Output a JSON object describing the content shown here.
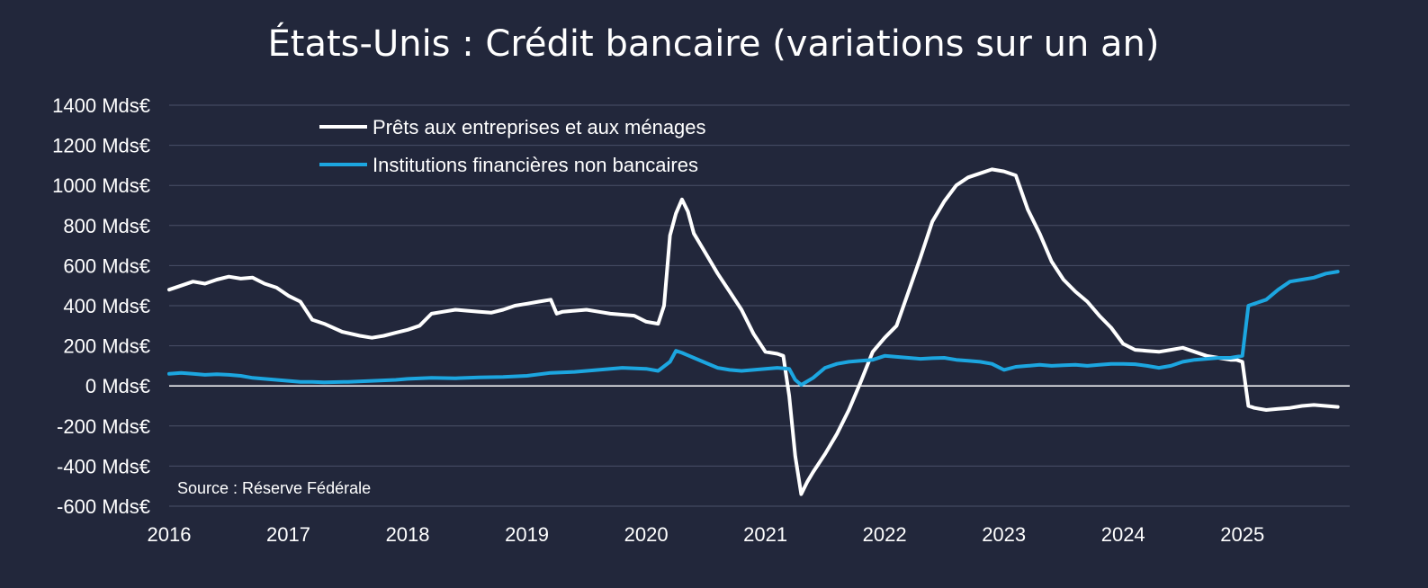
{
  "chart_data": {
    "type": "line",
    "title": "États-Unis : Crédit bancaire (variations sur un an)",
    "source": "Source : Réserve Fédérale",
    "ylim": [
      -600,
      1400
    ],
    "xlim": [
      2016,
      2025.9
    ],
    "yticks": [
      -600,
      -400,
      -200,
      0,
      200,
      400,
      600,
      800,
      1000,
      1200,
      1400
    ],
    "ytick_labels": [
      "-600 Mds€",
      "-400 Mds€",
      "-200 Mds€",
      "0 Mds€",
      "200 Mds€",
      "400 Mds€",
      "600 Mds€",
      "800 Mds€",
      "1000 Mds€",
      "1200 Mds€",
      "1400 Mds€"
    ],
    "xticks": [
      2016,
      2017,
      2018,
      2019,
      2020,
      2021,
      2022,
      2023,
      2024,
      2025
    ],
    "xtick_labels": [
      "2016",
      "2017",
      "2018",
      "2019",
      "2020",
      "2021",
      "2022",
      "2023",
      "2024",
      "2025"
    ],
    "grid": true,
    "legend_position": "top-left",
    "series": [
      {
        "name": "Prêts aux entreprises et aux ménages",
        "color": "#ffffff",
        "x": [
          2016.0,
          2016.1,
          2016.2,
          2016.3,
          2016.4,
          2016.5,
          2016.6,
          2016.7,
          2016.8,
          2016.9,
          2017.0,
          2017.1,
          2017.2,
          2017.3,
          2017.45,
          2017.6,
          2017.7,
          2017.8,
          2017.9,
          2018.0,
          2018.1,
          2018.2,
          2018.3,
          2018.4,
          2018.5,
          2018.6,
          2018.7,
          2018.8,
          2018.9,
          2019.0,
          2019.1,
          2019.2,
          2019.25,
          2019.3,
          2019.4,
          2019.5,
          2019.6,
          2019.7,
          2019.8,
          2019.9,
          2020.0,
          2020.1,
          2020.15,
          2020.2,
          2020.25,
          2020.3,
          2020.35,
          2020.4,
          2020.5,
          2020.6,
          2020.7,
          2020.8,
          2020.9,
          2021.0,
          2021.1,
          2021.15,
          2021.2,
          2021.25,
          2021.3,
          2021.35,
          2021.4,
          2021.5,
          2021.6,
          2021.7,
          2021.8,
          2021.9,
          2022.0,
          2022.1,
          2022.2,
          2022.3,
          2022.4,
          2022.5,
          2022.6,
          2022.7,
          2022.8,
          2022.9,
          2023.0,
          2023.1,
          2023.2,
          2023.3,
          2023.4,
          2023.5,
          2023.6,
          2023.7,
          2023.8,
          2023.9,
          2024.0,
          2024.1,
          2024.2,
          2024.3,
          2024.4,
          2024.5,
          2024.6,
          2024.7,
          2024.8,
          2024.9,
          2024.95,
          2025.0,
          2025.05,
          2025.1,
          2025.2,
          2025.3,
          2025.4,
          2025.5,
          2025.6,
          2025.7,
          2025.8
        ],
        "values": [
          480,
          500,
          520,
          510,
          530,
          545,
          535,
          540,
          510,
          490,
          450,
          420,
          330,
          310,
          270,
          250,
          240,
          250,
          265,
          280,
          300,
          360,
          370,
          380,
          375,
          370,
          365,
          380,
          400,
          410,
          420,
          430,
          360,
          370,
          375,
          380,
          370,
          360,
          355,
          350,
          320,
          310,
          400,
          750,
          860,
          930,
          870,
          760,
          660,
          560,
          470,
          380,
          260,
          170,
          160,
          150,
          -50,
          -350,
          -540,
          -480,
          -430,
          -340,
          -240,
          -120,
          20,
          170,
          240,
          300,
          470,
          640,
          820,
          920,
          1000,
          1040,
          1060,
          1080,
          1070,
          1050,
          880,
          760,
          620,
          530,
          470,
          420,
          350,
          290,
          210,
          180,
          175,
          170,
          180,
          190,
          170,
          150,
          140,
          130,
          130,
          120,
          -100,
          -110,
          -120,
          -115,
          -110,
          -100,
          -95,
          -100,
          -105
        ]
      },
      {
        "name": "Institutions financières non bancaires",
        "color": "#1ca6e0",
        "x": [
          2016.0,
          2016.1,
          2016.2,
          2016.3,
          2016.4,
          2016.5,
          2016.6,
          2016.7,
          2016.8,
          2016.9,
          2017.0,
          2017.1,
          2017.2,
          2017.3,
          2017.5,
          2017.7,
          2017.9,
          2018.0,
          2018.2,
          2018.4,
          2018.6,
          2018.8,
          2019.0,
          2019.2,
          2019.4,
          2019.6,
          2019.8,
          2020.0,
          2020.1,
          2020.2,
          2020.25,
          2020.3,
          2020.4,
          2020.5,
          2020.6,
          2020.7,
          2020.8,
          2020.9,
          2021.0,
          2021.1,
          2021.2,
          2021.25,
          2021.3,
          2021.4,
          2021.5,
          2021.6,
          2021.7,
          2021.8,
          2021.9,
          2022.0,
          2022.1,
          2022.2,
          2022.3,
          2022.4,
          2022.5,
          2022.6,
          2022.7,
          2022.8,
          2022.9,
          2023.0,
          2023.1,
          2023.2,
          2023.3,
          2023.4,
          2023.5,
          2023.6,
          2023.7,
          2023.8,
          2023.9,
          2024.0,
          2024.1,
          2024.2,
          2024.3,
          2024.4,
          2024.5,
          2024.6,
          2024.7,
          2024.8,
          2024.9,
          2024.95,
          2025.0,
          2025.05,
          2025.1,
          2025.2,
          2025.3,
          2025.4,
          2025.5,
          2025.6,
          2025.7,
          2025.8
        ],
        "values": [
          60,
          65,
          60,
          55,
          58,
          55,
          50,
          40,
          35,
          30,
          25,
          20,
          20,
          18,
          20,
          25,
          30,
          35,
          40,
          38,
          42,
          45,
          50,
          65,
          70,
          80,
          90,
          85,
          75,
          120,
          175,
          165,
          140,
          115,
          90,
          80,
          75,
          80,
          85,
          90,
          85,
          30,
          5,
          40,
          90,
          110,
          120,
          125,
          130,
          150,
          145,
          140,
          135,
          138,
          140,
          130,
          125,
          120,
          110,
          80,
          95,
          100,
          105,
          100,
          103,
          105,
          100,
          105,
          110,
          110,
          108,
          100,
          90,
          100,
          120,
          130,
          135,
          140,
          140,
          145,
          150,
          400,
          410,
          430,
          480,
          520,
          530,
          540,
          560,
          570
        ]
      }
    ]
  }
}
